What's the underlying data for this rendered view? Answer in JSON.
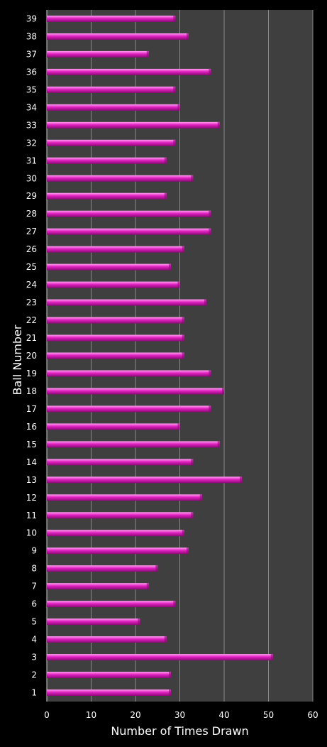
{
  "chart_data": {
    "type": "bar",
    "orientation": "horizontal",
    "xlabel": "Number of Times Drawn",
    "ylabel": "Ball Number",
    "xlim": [
      0,
      60
    ],
    "xticks": [
      "0",
      "10",
      "20",
      "30",
      "40",
      "50",
      "60"
    ],
    "grid": true,
    "legend": "none",
    "categories": [
      "1",
      "2",
      "3",
      "4",
      "5",
      "6",
      "7",
      "8",
      "9",
      "10",
      "11",
      "12",
      "13",
      "14",
      "15",
      "16",
      "17",
      "18",
      "19",
      "20",
      "21",
      "22",
      "23",
      "24",
      "25",
      "26",
      "27",
      "28",
      "29",
      "30",
      "31",
      "32",
      "33",
      "34",
      "35",
      "36",
      "37",
      "38",
      "39"
    ],
    "values": [
      28,
      28,
      51,
      27,
      21,
      29,
      23,
      25,
      32,
      31,
      33,
      35,
      44,
      33,
      39,
      30,
      37,
      40,
      37,
      31,
      31,
      31,
      36,
      30,
      28,
      31,
      37,
      37,
      27,
      33,
      27,
      29,
      39,
      30,
      29,
      37,
      23,
      32,
      29
    ]
  },
  "colors": {
    "background": "#000000",
    "plot_area": "#3f3f3f",
    "gridline": "#8a8a8a",
    "bar": "#e020c0",
    "bar_highlight": "#ff9ff0",
    "bar_shadow": "#8a0a75",
    "text": "#ffffff"
  }
}
